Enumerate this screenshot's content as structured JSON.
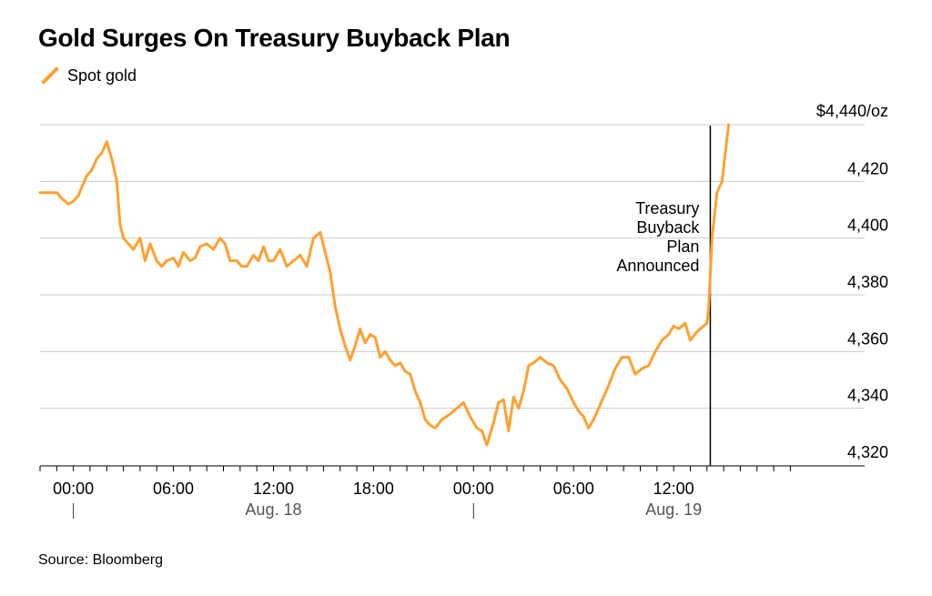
{
  "title": "Gold Surges On Treasury Buyback Plan",
  "source": "Source: Bloomberg",
  "colors": {
    "series": "#ffa030",
    "grid": "#cccccc",
    "axis": "#000000"
  },
  "chart_data": {
    "type": "line",
    "title": "Gold Surges On Treasury Buyback Plan",
    "legend_position": "top-left",
    "grid": true,
    "y_unit_label": "$4,440/oz",
    "ylim": [
      4317,
      4446
    ],
    "y_ticks": [
      {
        "value": 4440,
        "label": "$4,440/oz"
      },
      {
        "value": 4420,
        "label": "4,420"
      },
      {
        "value": 4400,
        "label": "4,400"
      },
      {
        "value": 4380,
        "label": "4,380"
      },
      {
        "value": 4360,
        "label": "4,360"
      },
      {
        "value": 4340,
        "label": "4,340"
      },
      {
        "value": 4320,
        "label": "4,320"
      }
    ],
    "x_unit": "hours from Aug. 18 00:00",
    "xlim": [
      -2,
      43.5
    ],
    "x_ticks": [
      {
        "value": 0,
        "label": "00:00"
      },
      {
        "value": 6,
        "label": "06:00"
      },
      {
        "value": 12,
        "label": "12:00"
      },
      {
        "value": 18,
        "label": "18:00"
      },
      {
        "value": 24,
        "label": "00:00"
      },
      {
        "value": 30,
        "label": "06:00"
      },
      {
        "value": 36,
        "label": "12:00"
      }
    ],
    "date_labels": [
      {
        "value": 12,
        "label": "Aug. 18"
      },
      {
        "value": 36,
        "label": "Aug. 19"
      }
    ],
    "day_markers": [
      0,
      24
    ],
    "annotation": {
      "x": 38.2,
      "lines": [
        "Treasury",
        "Buyback",
        "Plan",
        "Announced"
      ]
    },
    "series": [
      {
        "name": "Spot gold",
        "x": [
          -2,
          -1,
          -0.7,
          -0.3,
          0,
          0.3,
          0.8,
          1.1,
          1.4,
          1.7,
          2.0,
          2.3,
          2.6,
          2.8,
          3.0,
          3.3,
          3.6,
          4.0,
          4.3,
          4.6,
          5.0,
          5.3,
          5.6,
          6.0,
          6.3,
          6.6,
          7.0,
          7.3,
          7.6,
          8.0,
          8.4,
          8.8,
          9.1,
          9.4,
          9.8,
          10.1,
          10.4,
          10.8,
          11.1,
          11.4,
          11.7,
          12.0,
          12.4,
          12.8,
          13.2,
          13.6,
          14.0,
          14.4,
          14.8,
          15.1,
          15.4,
          15.7,
          16.0,
          16.3,
          16.6,
          16.9,
          17.2,
          17.5,
          17.8,
          18.1,
          18.4,
          18.7,
          19.0,
          19.3,
          19.6,
          19.9,
          20.2,
          20.5,
          20.8,
          21.1,
          21.4,
          21.7,
          22.1,
          22.6,
          23.0,
          23.4,
          23.8,
          24.2,
          24.5,
          24.8,
          25.2,
          25.5,
          25.8,
          26.1,
          26.4,
          26.7,
          27.0,
          27.3,
          27.6,
          28.0,
          28.4,
          28.8,
          29.2,
          29.6,
          30.0,
          30.3,
          30.6,
          30.9,
          31.2,
          31.5,
          31.8,
          32.1,
          32.5,
          32.9,
          33.3,
          33.7,
          34.1,
          34.5,
          34.9,
          35.3,
          35.7,
          36.0,
          36.3,
          36.7,
          37.0,
          37.4,
          37.8,
          38.0,
          38.1,
          38.3,
          38.6,
          38.9,
          39.1,
          39.3
        ],
        "values": [
          4416,
          4416,
          4414,
          4412,
          4413,
          4415,
          4422,
          4424,
          4428,
          4430,
          4434,
          4428,
          4420,
          4405,
          4400,
          4398,
          4396,
          4400,
          4392,
          4398,
          4392,
          4390,
          4392,
          4393,
          4390,
          4395,
          4392,
          4393,
          4397,
          4398,
          4396,
          4400,
          4398,
          4392,
          4392,
          4390,
          4390,
          4394,
          4392,
          4397,
          4392,
          4392,
          4396,
          4390,
          4392,
          4394,
          4390,
          4400,
          4402,
          4395,
          4388,
          4376,
          4368,
          4362,
          4357,
          4362,
          4368,
          4363,
          4366,
          4365,
          4358,
          4360,
          4357,
          4355,
          4356,
          4353,
          4352,
          4346,
          4342,
          4336,
          4334,
          4333,
          4336,
          4338,
          4340,
          4342,
          4337,
          4333,
          4332,
          4327,
          4335,
          4342,
          4343,
          4332,
          4344,
          4340,
          4346,
          4355,
          4356,
          4358,
          4356,
          4355,
          4350,
          4347,
          4342,
          4339,
          4337,
          4333,
          4336,
          4340,
          4344,
          4348,
          4354,
          4358,
          4358,
          4352,
          4354,
          4355,
          4360,
          4364,
          4366,
          4369,
          4368,
          4370,
          4364,
          4367,
          4369,
          4370,
          4375,
          4400,
          4416,
          4420,
          4430,
          4440
        ]
      }
    ]
  }
}
